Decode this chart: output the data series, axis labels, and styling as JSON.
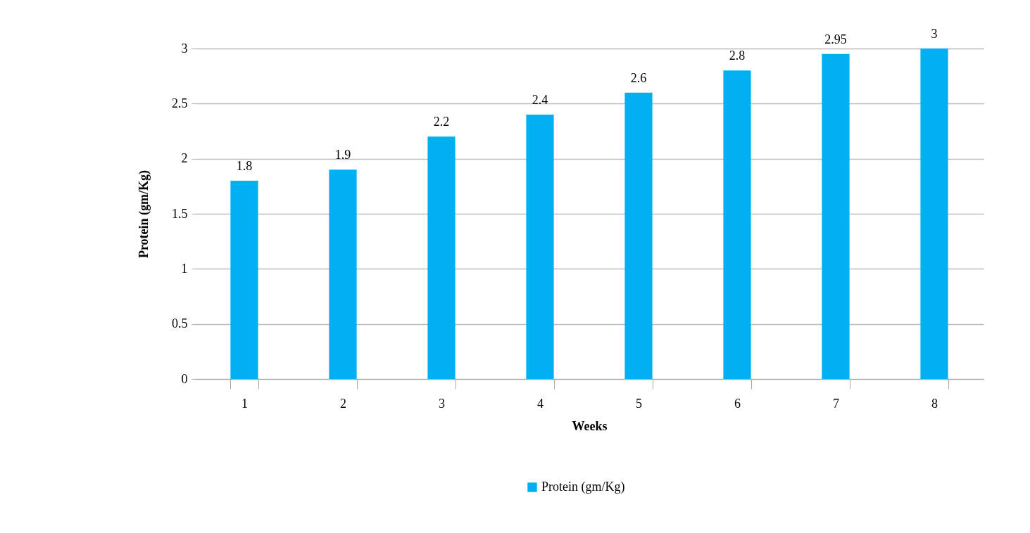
{
  "chart_data": {
    "type": "bar",
    "xlabel": "Weeks",
    "ylabel": "Protein (gm/Kg)",
    "categories": [
      "1",
      "2",
      "3",
      "4",
      "5",
      "6",
      "7",
      "8"
    ],
    "series": [
      {
        "name": "Protein (gm/Kg)",
        "color": "#00b0f0",
        "values": [
          1.8,
          1.9,
          2.2,
          2.4,
          2.6,
          2.8,
          2.95,
          3
        ]
      }
    ],
    "ylim": [
      0,
      3
    ],
    "yticks": [
      0,
      0.5,
      1,
      1.5,
      2,
      2.5,
      3
    ],
    "grid": "y",
    "legend": "bottom",
    "data_labels": true
  }
}
